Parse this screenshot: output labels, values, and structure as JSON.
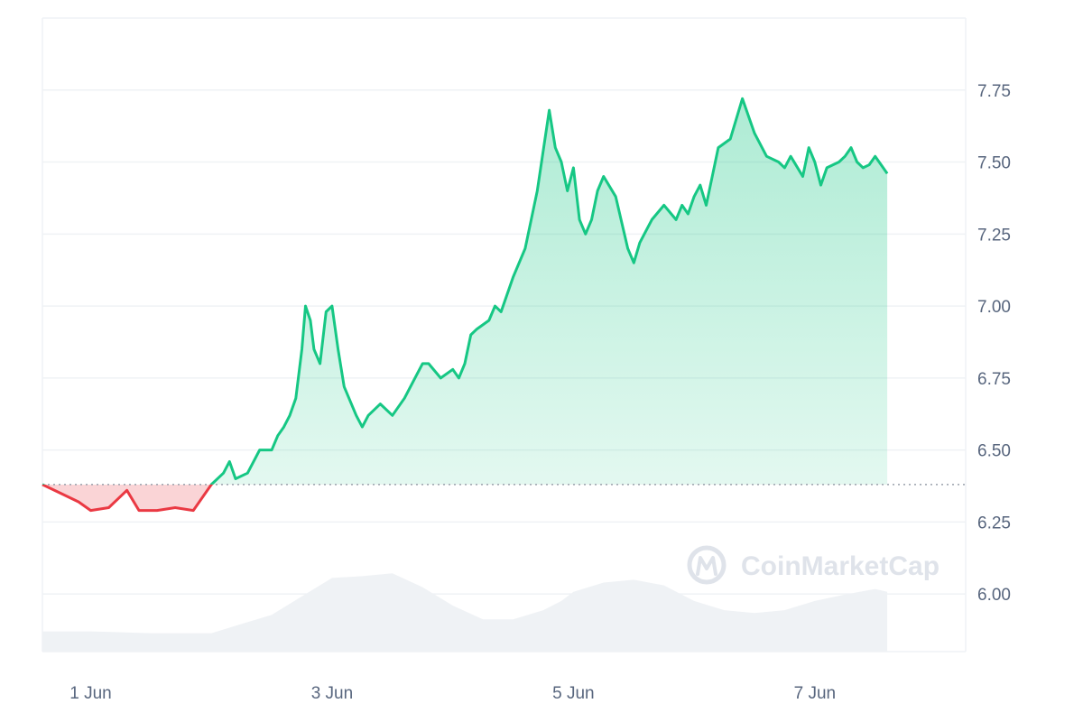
{
  "chart_data": {
    "type": "area",
    "title": "",
    "xlabel": "",
    "ylabel": "",
    "y_axis_side": "right",
    "ylim": [
      5.8,
      8.0
    ],
    "xlim": [
      0.6,
      8.25
    ],
    "y_ticks": [
      6.0,
      6.25,
      6.5,
      6.75,
      7.0,
      7.25,
      7.5,
      7.75
    ],
    "y_tick_labels": [
      "6.00",
      "6.25",
      "6.50",
      "6.75",
      "7.00",
      "7.25",
      "7.50",
      "7.75"
    ],
    "x_ticks": [
      1,
      3,
      5,
      7
    ],
    "x_tick_labels": [
      "1 Jun",
      "3 Jun",
      "5 Jun",
      "7 Jun"
    ],
    "baseline": 6.38,
    "grid": true,
    "colors": {
      "up": "#16c784",
      "down": "#ea3943",
      "volume": "#eff2f5",
      "grid": "#eff2f5"
    },
    "watermark": "CoinMarketCap",
    "price_series": {
      "x": [
        0.6,
        0.75,
        0.9,
        1.0,
        1.15,
        1.3,
        1.4,
        1.55,
        1.7,
        1.85,
        2.0,
        2.1,
        2.15,
        2.2,
        2.3,
        2.4,
        2.5,
        2.55,
        2.6,
        2.65,
        2.7,
        2.75,
        2.78,
        2.82,
        2.85,
        2.9,
        2.95,
        3.0,
        3.05,
        3.1,
        3.2,
        3.25,
        3.3,
        3.4,
        3.5,
        3.6,
        3.7,
        3.75,
        3.8,
        3.9,
        4.0,
        4.05,
        4.1,
        4.15,
        4.2,
        4.3,
        4.35,
        4.4,
        4.5,
        4.6,
        4.7,
        4.8,
        4.85,
        4.9,
        4.95,
        5.0,
        5.05,
        5.1,
        5.15,
        5.2,
        5.25,
        5.35,
        5.45,
        5.5,
        5.55,
        5.65,
        5.75,
        5.85,
        5.9,
        5.95,
        6.0,
        6.05,
        6.1,
        6.15,
        6.2,
        6.3,
        6.4,
        6.5,
        6.6,
        6.7,
        6.75,
        6.8,
        6.9,
        6.95,
        7.0,
        7.05,
        7.1,
        7.2,
        7.25,
        7.3,
        7.35,
        7.4,
        7.45,
        7.5,
        7.55,
        7.6
      ],
      "y": [
        6.38,
        6.35,
        6.32,
        6.29,
        6.3,
        6.36,
        6.29,
        6.29,
        6.3,
        6.29,
        6.38,
        6.42,
        6.46,
        6.4,
        6.42,
        6.5,
        6.5,
        6.55,
        6.58,
        6.62,
        6.68,
        6.85,
        7.0,
        6.95,
        6.85,
        6.8,
        6.98,
        7.0,
        6.85,
        6.72,
        6.62,
        6.58,
        6.62,
        6.66,
        6.62,
        6.68,
        6.76,
        6.8,
        6.8,
        6.75,
        6.78,
        6.75,
        6.8,
        6.9,
        6.92,
        6.95,
        7.0,
        6.98,
        7.1,
        7.2,
        7.4,
        7.68,
        7.55,
        7.5,
        7.4,
        7.48,
        7.3,
        7.25,
        7.3,
        7.4,
        7.45,
        7.38,
        7.2,
        7.15,
        7.22,
        7.3,
        7.35,
        7.3,
        7.35,
        7.32,
        7.38,
        7.42,
        7.35,
        7.45,
        7.55,
        7.58,
        7.72,
        7.6,
        7.52,
        7.5,
        7.48,
        7.52,
        7.45,
        7.55,
        7.5,
        7.42,
        7.48,
        7.5,
        7.52,
        7.55,
        7.5,
        7.48,
        7.49,
        7.52,
        7.49,
        7.46
      ]
    },
    "volume_series": {
      "x": [
        0.6,
        1.0,
        1.5,
        2.0,
        2.25,
        2.5,
        2.75,
        3.0,
        3.25,
        3.5,
        3.75,
        4.0,
        4.25,
        4.5,
        4.75,
        4.9,
        5.0,
        5.25,
        5.5,
        5.75,
        6.0,
        6.25,
        6.5,
        6.75,
        7.0,
        7.25,
        7.5,
        7.6
      ],
      "y": [
        0.22,
        0.22,
        0.2,
        0.2,
        0.3,
        0.4,
        0.6,
        0.8,
        0.82,
        0.85,
        0.7,
        0.5,
        0.35,
        0.35,
        0.45,
        0.55,
        0.65,
        0.75,
        0.78,
        0.72,
        0.55,
        0.45,
        0.42,
        0.45,
        0.55,
        0.62,
        0.68,
        0.65
      ]
    }
  }
}
